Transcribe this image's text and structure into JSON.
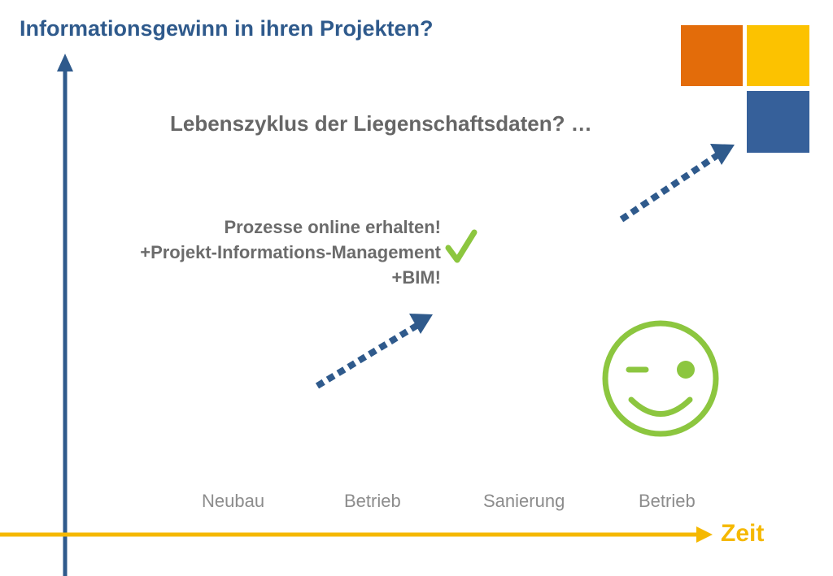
{
  "header": {
    "title": "Informationsgewinn in ihren Projekten?"
  },
  "lifecycle": {
    "question": "Lebenszyklus der Liegenschaftsdaten? …"
  },
  "process": {
    "lines": [
      "Prozesse online erhalten!",
      "+Projekt-Informations-Management",
      "+BIM!"
    ]
  },
  "phases": [
    "Neubau",
    "Betrieb",
    "Sanierung",
    "Betrieb"
  ],
  "axis": {
    "x_label": "Zeit"
  },
  "colors": {
    "blue": "#2f5a8c",
    "yellow": "#f5b800",
    "orange": "#e36c0a",
    "green": "#8cc63f",
    "gray": "#666666"
  },
  "icons": {
    "check": "checkmark-icon",
    "smiley": "winking-smiley-icon",
    "logo": "four-square-logo"
  }
}
